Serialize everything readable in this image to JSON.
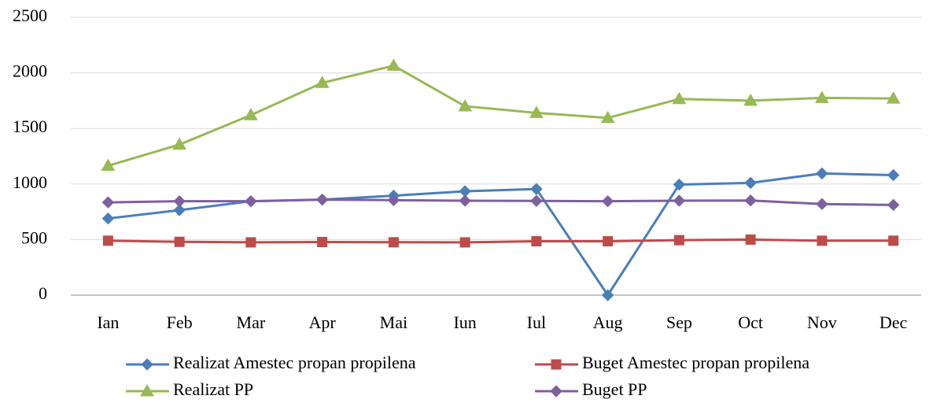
{
  "chart_data": {
    "type": "line",
    "categories": [
      "Ian",
      "Feb",
      "Mar",
      "Apr",
      "Mai",
      "Iun",
      "Iul",
      "Aug",
      "Sep",
      "Oct",
      "Nov",
      "Dec"
    ],
    "series": [
      {
        "name": "Realizat Amestec propan propilena",
        "color": "#4a7ebb",
        "marker": "diamond",
        "values": [
          690,
          765,
          845,
          860,
          895,
          935,
          955,
          0,
          995,
          1010,
          1095,
          1080
        ]
      },
      {
        "name": "Buget Amestec propan propilena",
        "color": "#be4b48",
        "marker": "square",
        "values": [
          490,
          480,
          475,
          478,
          476,
          475,
          485,
          485,
          495,
          500,
          490,
          490
        ]
      },
      {
        "name": "Realizat PP",
        "color": "#98b954",
        "marker": "triangle",
        "values": [
          1165,
          1355,
          1620,
          1910,
          2065,
          1700,
          1640,
          1595,
          1765,
          1750,
          1775,
          1770
        ]
      },
      {
        "name": "Buget PP",
        "color": "#7d60a0",
        "marker": "diamond",
        "values": [
          835,
          845,
          845,
          860,
          855,
          850,
          848,
          845,
          850,
          852,
          820,
          812
        ]
      }
    ],
    "ylim": [
      0,
      2500
    ],
    "yticks": [
      0,
      500,
      1000,
      1500,
      2000,
      2500
    ],
    "grid": true,
    "legend": "bottom"
  }
}
